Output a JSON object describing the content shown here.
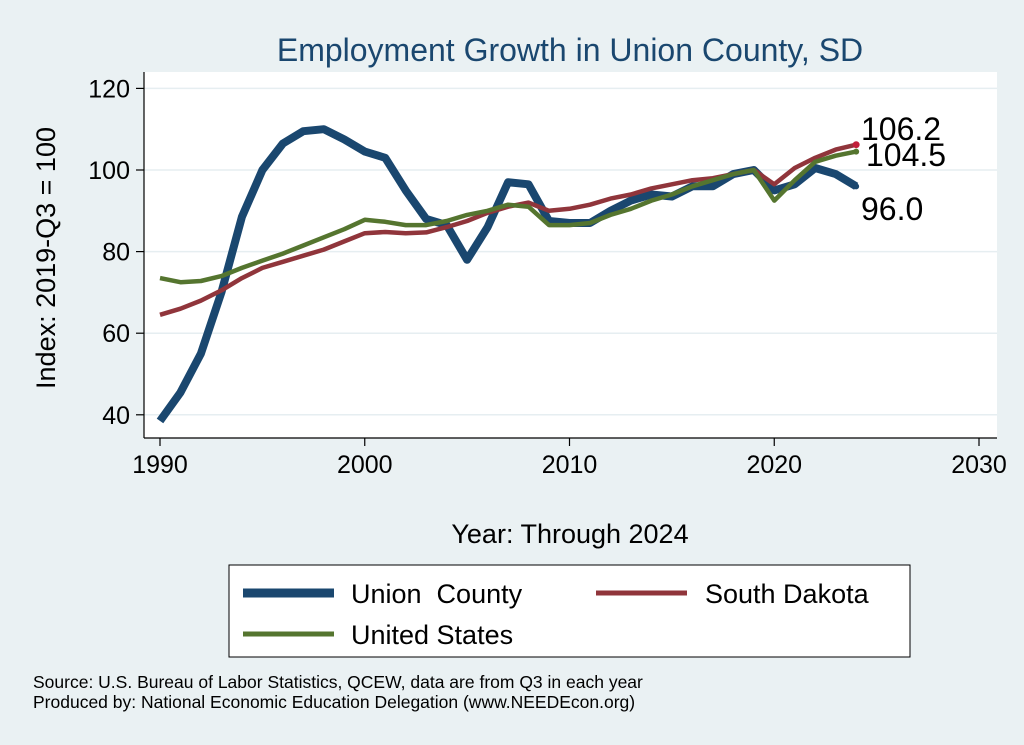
{
  "chart_data": {
    "type": "line",
    "title": "Employment Growth in Union County, SD",
    "xlabel": "Year: Through 2024",
    "ylabel": "Index: 2019-Q3 = 100",
    "xlim": [
      1990,
      2030
    ],
    "ylim": [
      38,
      124
    ],
    "xticks": [
      1990,
      2000,
      2010,
      2020,
      2030
    ],
    "yticks": [
      40,
      60,
      80,
      100,
      120
    ],
    "grid": true,
    "legend_position": "bottom",
    "x": [
      1990,
      1991,
      1992,
      1993,
      1994,
      1995,
      1996,
      1997,
      1998,
      1999,
      2000,
      2001,
      2002,
      2003,
      2004,
      2005,
      2006,
      2007,
      2008,
      2009,
      2010,
      2011,
      2012,
      2013,
      2014,
      2015,
      2016,
      2017,
      2018,
      2019,
      2020,
      2021,
      2022,
      2023,
      2024
    ],
    "series": [
      {
        "name": "Union  County",
        "color": "#1a476f",
        "values": [
          38.5,
          45.5,
          55.0,
          70.0,
          88.5,
          100.0,
          106.5,
          109.5,
          110.0,
          107.5,
          104.5,
          103.0,
          95.0,
          88.0,
          86.5,
          78.0,
          86.0,
          97.0,
          96.5,
          87.5,
          87.0,
          87.0,
          90.0,
          92.5,
          94.0,
          93.5,
          96.0,
          96.0,
          99.0,
          100.0,
          95.0,
          96.5,
          100.5,
          99.0,
          96.0
        ],
        "end_label": "96.0"
      },
      {
        "name": "South Dakota",
        "color": "#90353b",
        "values": [
          64.5,
          66.0,
          68.0,
          70.5,
          73.5,
          76.0,
          77.5,
          79.0,
          80.5,
          82.5,
          84.5,
          84.8,
          84.5,
          84.7,
          86.0,
          87.5,
          89.5,
          91.0,
          92.0,
          90.0,
          90.5,
          91.5,
          93.0,
          94.0,
          95.5,
          96.5,
          97.5,
          98.0,
          99.0,
          100.0,
          96.5,
          100.5,
          103.0,
          105.0,
          106.2
        ],
        "end_label": "106.2"
      },
      {
        "name": "United States",
        "color": "#55752f",
        "values": [
          73.5,
          72.5,
          72.8,
          74.0,
          76.0,
          77.8,
          79.5,
          81.5,
          83.5,
          85.5,
          87.8,
          87.3,
          86.5,
          86.5,
          87.5,
          89.0,
          90.0,
          91.5,
          91.0,
          86.5,
          86.5,
          87.0,
          89.0,
          90.5,
          92.5,
          94.0,
          96.0,
          97.5,
          99.0,
          100.0,
          92.5,
          97.5,
          102.0,
          103.5,
          104.5
        ],
        "end_label": "104.5"
      }
    ]
  },
  "footer": {
    "source": "Source: U.S. Bureau of Labor Statistics, QCEW, data are from Q3 in each year",
    "producer": "Produced by: National Economic Education Delegation (www.NEEDEcon.org)"
  }
}
